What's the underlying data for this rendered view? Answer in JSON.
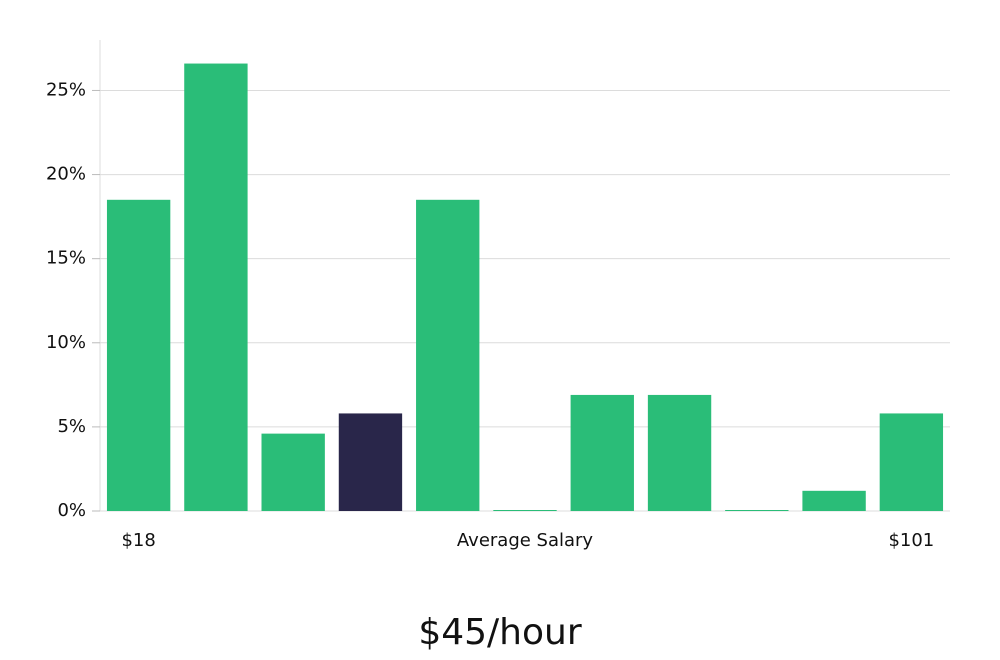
{
  "chart_data": {
    "type": "bar",
    "categories": [
      "$18",
      null,
      null,
      null,
      null,
      null,
      null,
      null,
      null,
      null,
      "$101"
    ],
    "values": [
      18.5,
      26.6,
      4.6,
      5.8,
      18.5,
      0,
      6.9,
      6.9,
      0,
      1.2,
      5.8
    ],
    "colors": [
      "#2abd78",
      "#2abd78",
      "#2abd78",
      "#29264a",
      "#2abd78",
      "#2abd78",
      "#2abd78",
      "#2abd78",
      "#2abd78",
      "#2abd78",
      "#2abd78"
    ],
    "x_label": "Average Salary",
    "annotation": "$45/hour",
    "ylim": [
      0,
      28
    ],
    "yticks": [
      {
        "value": 0,
        "label": "0%"
      },
      {
        "value": 5,
        "label": "5%"
      },
      {
        "value": 10,
        "label": "10%"
      },
      {
        "value": 15,
        "label": "15%"
      },
      {
        "value": 20,
        "label": "20%"
      },
      {
        "value": 25,
        "label": "25%"
      }
    ],
    "grid": true
  }
}
